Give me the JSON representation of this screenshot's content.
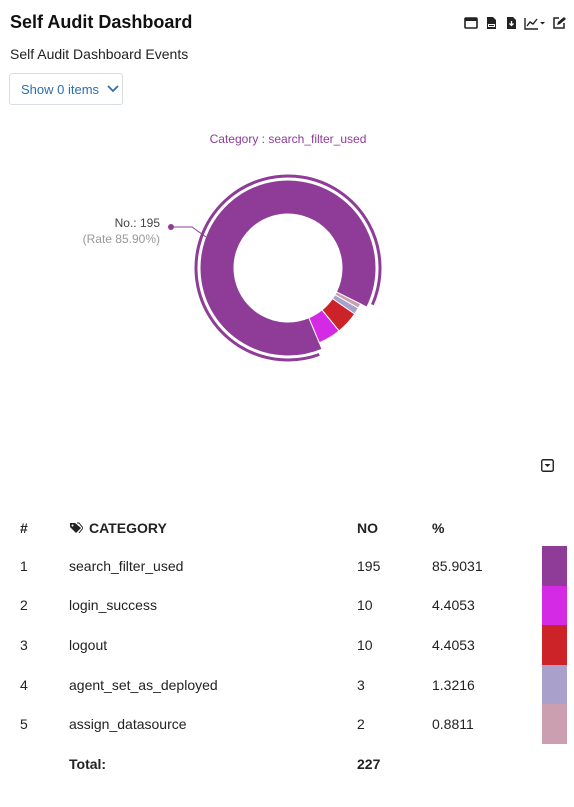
{
  "header": {
    "title": "Self Audit Dashboard",
    "subtitle": "Self Audit Dashboard Events"
  },
  "toolbar": {
    "icons": [
      "window-icon",
      "pdf-icon",
      "download-icon",
      "chart-type-icon",
      "edit-icon"
    ]
  },
  "filter": {
    "button_label": "Show 0 items"
  },
  "chart_data": {
    "type": "pie",
    "variant": "donut",
    "title": "Category : search_filter_used",
    "categories": [
      "search_filter_used",
      "login_success",
      "logout",
      "agent_set_as_deployed",
      "assign_datasource"
    ],
    "values": [
      195,
      10,
      10,
      3,
      2
    ],
    "colors": [
      "#8e3c98",
      "#d42ae6",
      "#cc2329",
      "#a9a1cc",
      "#cb9eb0"
    ],
    "tooltip": {
      "category": "search_filter_used",
      "value_label": "No.: 195",
      "rate_label": "(Rate 85.90%)"
    }
  },
  "table": {
    "headers": {
      "rank": "#",
      "category": "CATEGORY",
      "no": "NO",
      "pct": "%"
    },
    "rows": [
      {
        "rank": "1",
        "category": "search_filter_used",
        "no": "195",
        "pct": "85.9031"
      },
      {
        "rank": "2",
        "category": "login_success",
        "no": "10",
        "pct": "4.4053"
      },
      {
        "rank": "3",
        "category": "logout",
        "no": "10",
        "pct": "4.4053"
      },
      {
        "rank": "4",
        "category": "agent_set_as_deployed",
        "no": "3",
        "pct": "1.3216"
      },
      {
        "rank": "5",
        "category": "assign_datasource",
        "no": "2",
        "pct": "0.8811"
      }
    ],
    "total_label": "Total:",
    "total_value": "227"
  }
}
